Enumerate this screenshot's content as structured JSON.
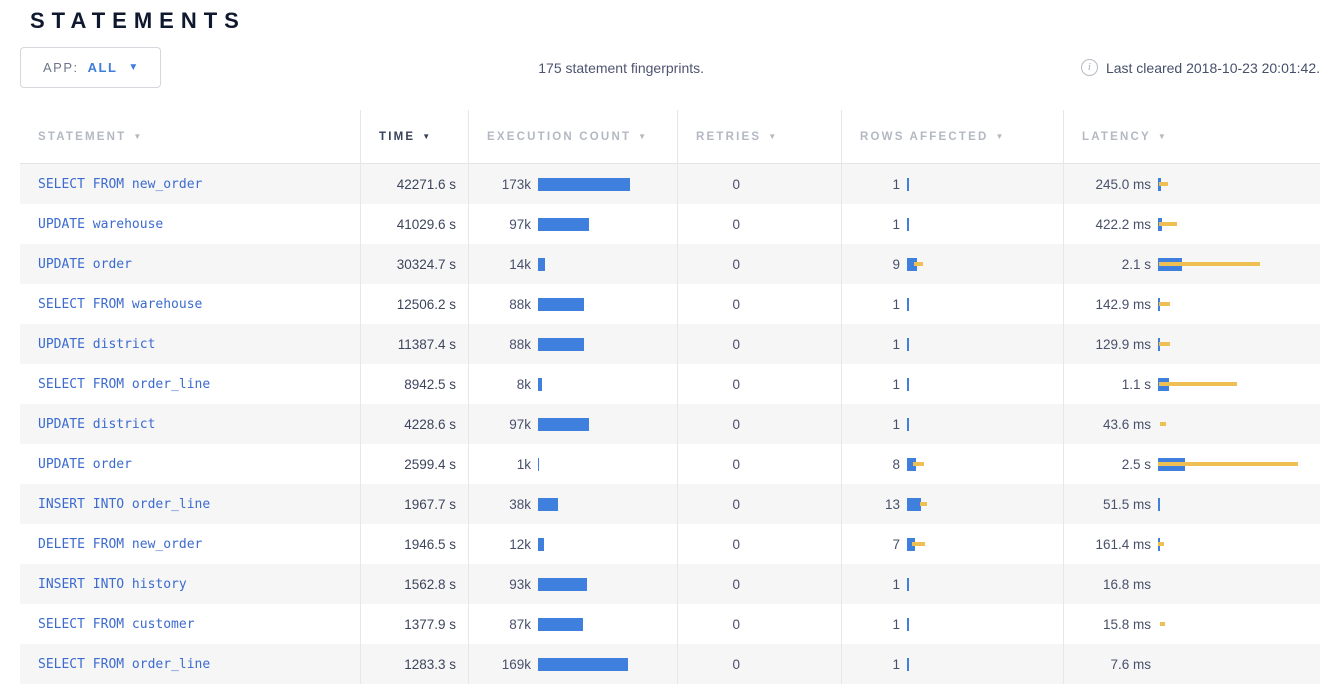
{
  "page": {
    "title": "STATEMENTS"
  },
  "toolbar": {
    "app_filter_label": "APP:",
    "app_filter_value": "ALL",
    "dropdown_caret": "▼",
    "fingerprints_text": "175 statement fingerprints.",
    "info_icon_glyph": "i",
    "last_cleared_text": "Last cleared 2018-10-23 20:01:42."
  },
  "colors": {
    "bar_blue": "#3f7fdd",
    "bar_yellow": "#eec053",
    "link_blue": "#3b6bce",
    "accent_blue": "#3e7dd9",
    "stripe_gray": "#f6f6f7"
  },
  "table": {
    "sort_caret": "▼",
    "columns": [
      {
        "label": "STATEMENT"
      },
      {
        "label": "TIME"
      },
      {
        "label": "EXECUTION COUNT"
      },
      {
        "label": "RETRIES"
      },
      {
        "label": "ROWS AFFECTED"
      },
      {
        "label": "LATENCY"
      }
    ],
    "sorted_column": "TIME",
    "rows": [
      {
        "statement": "SELECT FROM new_order",
        "time": "42271.6 s",
        "retries": "0",
        "exec": {
          "label": "173k",
          "bar": 92
        },
        "rows": {
          "label": "1",
          "bar": 1.5,
          "wstart": 0,
          "wlen": 0
        },
        "latency": {
          "label": "245.0 ms",
          "bar": 3,
          "wstart": 1,
          "wlen": 9
        }
      },
      {
        "statement": "UPDATE warehouse",
        "time": "41029.6 s",
        "retries": "0",
        "exec": {
          "label": "97k",
          "bar": 51
        },
        "rows": {
          "label": "1",
          "bar": 1.5,
          "wstart": 0,
          "wlen": 0
        },
        "latency": {
          "label": "422.2 ms",
          "bar": 4,
          "wstart": 1,
          "wlen": 18
        }
      },
      {
        "statement": "UPDATE order",
        "time": "30324.7 s",
        "retries": "0",
        "exec": {
          "label": "14k",
          "bar": 7
        },
        "rows": {
          "label": "9",
          "bar": 10,
          "wstart": 7,
          "wlen": 9
        },
        "latency": {
          "label": "2.1 s",
          "bar": 24,
          "wstart": 1,
          "wlen": 101
        }
      },
      {
        "statement": "SELECT FROM warehouse",
        "time": "12506.2 s",
        "retries": "0",
        "exec": {
          "label": "88k",
          "bar": 46
        },
        "rows": {
          "label": "1",
          "bar": 1.5,
          "wstart": 0,
          "wlen": 0
        },
        "latency": {
          "label": "142.9 ms",
          "bar": 2,
          "wstart": 1,
          "wlen": 11
        }
      },
      {
        "statement": "UPDATE district",
        "time": "11387.4 s",
        "retries": "0",
        "exec": {
          "label": "88k",
          "bar": 46
        },
        "rows": {
          "label": "1",
          "bar": 1.5,
          "wstart": 0,
          "wlen": 0
        },
        "latency": {
          "label": "129.9 ms",
          "bar": 1.5,
          "wstart": 1,
          "wlen": 11
        }
      },
      {
        "statement": "SELECT FROM order_line",
        "time": "8942.5 s",
        "retries": "0",
        "exec": {
          "label": "8k",
          "bar": 4
        },
        "rows": {
          "label": "1",
          "bar": 1.5,
          "wstart": 0,
          "wlen": 0
        },
        "latency": {
          "label": "1.1 s",
          "bar": 11,
          "wstart": 1,
          "wlen": 78
        }
      },
      {
        "statement": "UPDATE district",
        "time": "4228.6 s",
        "retries": "0",
        "exec": {
          "label": "97k",
          "bar": 51
        },
        "rows": {
          "label": "1",
          "bar": 1.5,
          "wstart": 0,
          "wlen": 0
        },
        "latency": {
          "label": "43.6 ms",
          "bar": 0,
          "wstart": 2,
          "wlen": 6
        }
      },
      {
        "statement": "UPDATE order",
        "time": "2599.4 s",
        "retries": "0",
        "exec": {
          "label": "1k",
          "bar": 1
        },
        "rows": {
          "label": "8",
          "bar": 9,
          "wstart": 6,
          "wlen": 11
        },
        "latency": {
          "label": "2.5 s",
          "bar": 27,
          "wstart": 0,
          "wlen": 140
        }
      },
      {
        "statement": "INSERT INTO order_line",
        "time": "1967.7 s",
        "retries": "0",
        "exec": {
          "label": "38k",
          "bar": 20
        },
        "rows": {
          "label": "13",
          "bar": 14,
          "wstart": 13,
          "wlen": 7
        },
        "latency": {
          "label": "51.5 ms",
          "bar": 1.5,
          "wstart": 0,
          "wlen": 0
        }
      },
      {
        "statement": "DELETE FROM new_order",
        "time": "1946.5 s",
        "retries": "0",
        "exec": {
          "label": "12k",
          "bar": 6
        },
        "rows": {
          "label": "7",
          "bar": 8,
          "wstart": 5,
          "wlen": 13
        },
        "latency": {
          "label": "161.4 ms",
          "bar": 2,
          "wstart": 0,
          "wlen": 6
        }
      },
      {
        "statement": "INSERT INTO history",
        "time": "1562.8 s",
        "retries": "0",
        "exec": {
          "label": "93k",
          "bar": 49
        },
        "rows": {
          "label": "1",
          "bar": 1.5,
          "wstart": 0,
          "wlen": 0
        },
        "latency": {
          "label": "16.8 ms",
          "bar": 0,
          "wstart": 0,
          "wlen": 0
        }
      },
      {
        "statement": "SELECT FROM customer",
        "time": "1377.9 s",
        "retries": "0",
        "exec": {
          "label": "87k",
          "bar": 45
        },
        "rows": {
          "label": "1",
          "bar": 1.5,
          "wstart": 0,
          "wlen": 0
        },
        "latency": {
          "label": "15.8 ms",
          "bar": 0,
          "wstart": 2,
          "wlen": 5
        }
      },
      {
        "statement": "SELECT FROM order_line",
        "time": "1283.3 s",
        "retries": "0",
        "exec": {
          "label": "169k",
          "bar": 90
        },
        "rows": {
          "label": "1",
          "bar": 1.5,
          "wstart": 0,
          "wlen": 0
        },
        "latency": {
          "label": "7.6 ms",
          "bar": 0,
          "wstart": 0,
          "wlen": 0
        }
      }
    ]
  }
}
